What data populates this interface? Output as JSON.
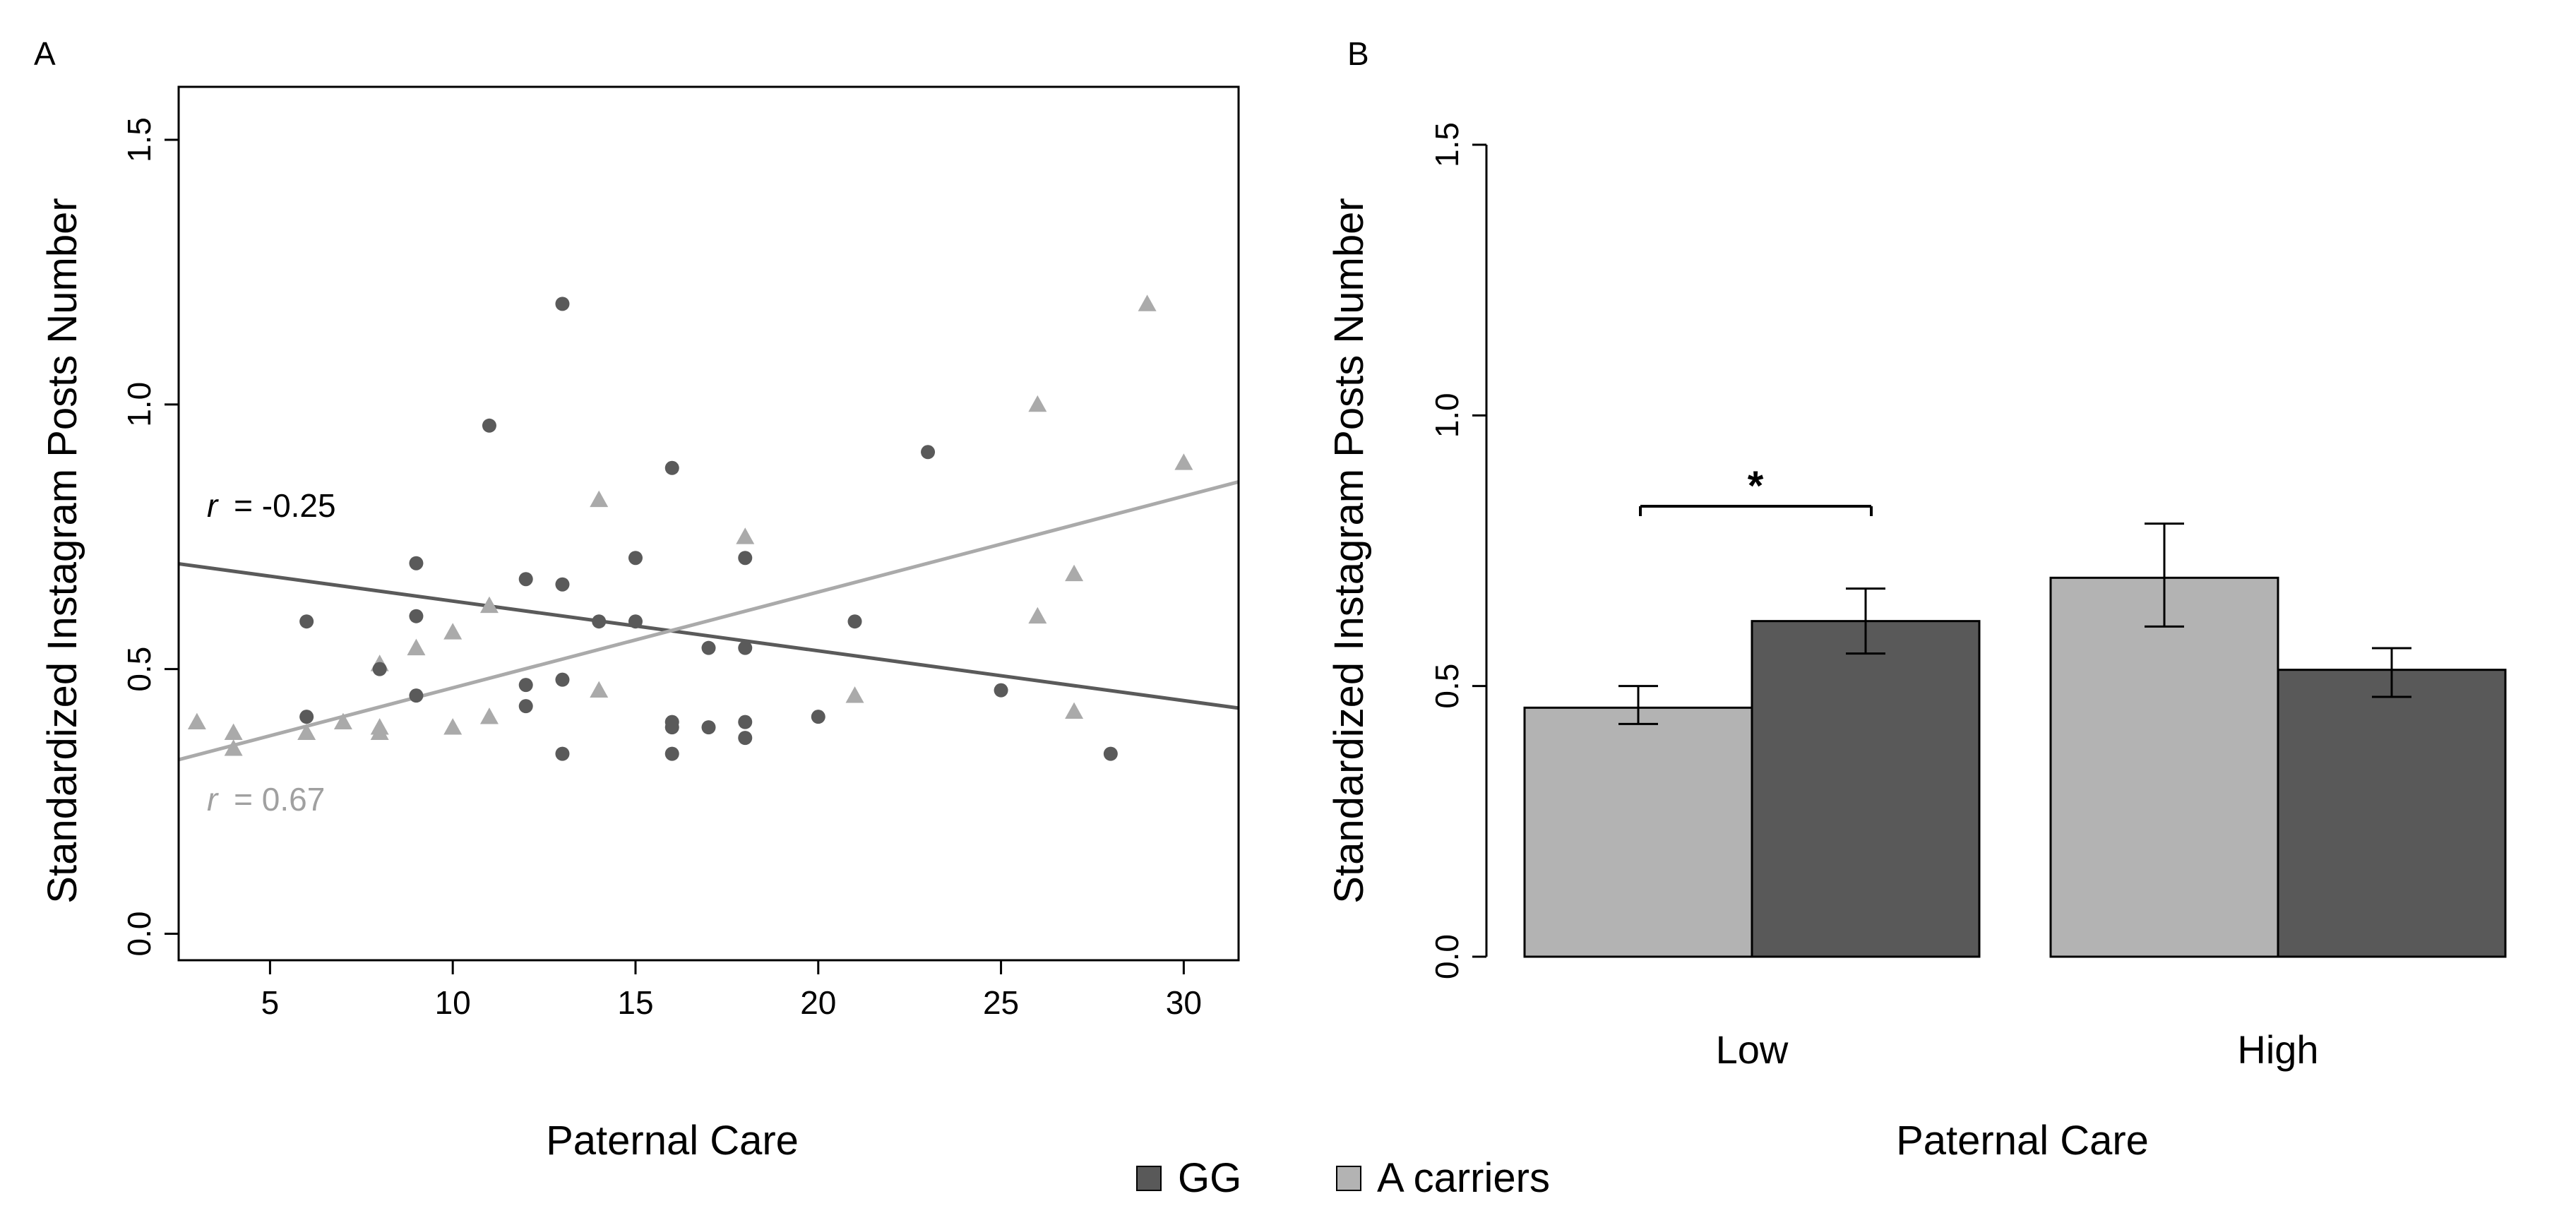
{
  "chart_data": [
    {
      "panel": "A",
      "type": "scatter",
      "xlabel": "Paternal Care",
      "ylabel": "Standardized Instagram Posts Number",
      "xlim": [
        2.5,
        31.5
      ],
      "ylim": [
        -0.05,
        1.6
      ],
      "xticks": [
        5,
        10,
        15,
        20,
        25,
        30
      ],
      "yticks": [
        0.0,
        0.5,
        1.0,
        1.5
      ],
      "xtick_labels": [
        "5",
        "10",
        "15",
        "20",
        "25",
        "30"
      ],
      "ytick_labels": [
        "0.0",
        "0.5",
        "1.0",
        "1.5"
      ],
      "series": [
        {
          "name": "GG",
          "marker": "circle",
          "color": "#5a5a5a",
          "points": [
            [
              6,
              0.59
            ],
            [
              6,
              0.41
            ],
            [
              8,
              0.5
            ],
            [
              9,
              0.7
            ],
            [
              9,
              0.6
            ],
            [
              9,
              0.45
            ],
            [
              11,
              0.96
            ],
            [
              12,
              0.67
            ],
            [
              12,
              0.47
            ],
            [
              12,
              0.43
            ],
            [
              13,
              1.19
            ],
            [
              13,
              0.66
            ],
            [
              13,
              0.48
            ],
            [
              13,
              0.34
            ],
            [
              14,
              0.59
            ],
            [
              15,
              0.71
            ],
            [
              15,
              0.59
            ],
            [
              16,
              0.88
            ],
            [
              16,
              0.39
            ],
            [
              16,
              0.4
            ],
            [
              16,
              0.34
            ],
            [
              17,
              0.54
            ],
            [
              17,
              0.39
            ],
            [
              18,
              0.71
            ],
            [
              18,
              0.54
            ],
            [
              18,
              0.4
            ],
            [
              18,
              0.37
            ],
            [
              20,
              0.41
            ],
            [
              21,
              0.59
            ],
            [
              23,
              0.91
            ],
            [
              25,
              0.46
            ],
            [
              28,
              0.34
            ]
          ],
          "fit": {
            "intercept": 0.7225,
            "slope": -0.0094
          },
          "r_label": "r",
          "r_value": "= -0.25"
        },
        {
          "name": "A carriers",
          "marker": "triangle",
          "color": "#aaaaaa",
          "points": [
            [
              3,
              0.4
            ],
            [
              4,
              0.38
            ],
            [
              4,
              0.35
            ],
            [
              6,
              0.38
            ],
            [
              7,
              0.4
            ],
            [
              8,
              0.51
            ],
            [
              8,
              0.39
            ],
            [
              8,
              0.38
            ],
            [
              9,
              0.54
            ],
            [
              10,
              0.57
            ],
            [
              10,
              0.39
            ],
            [
              11,
              0.62
            ],
            [
              11,
              0.41
            ],
            [
              14,
              0.82
            ],
            [
              14,
              0.46
            ],
            [
              18,
              0.75
            ],
            [
              21,
              0.45
            ],
            [
              26,
              1.0
            ],
            [
              26,
              0.6
            ],
            [
              27,
              0.68
            ],
            [
              27,
              0.42
            ],
            [
              29,
              1.19
            ],
            [
              30,
              0.89
            ]
          ],
          "fit": {
            "intercept": 0.2836,
            "slope": 0.0181
          },
          "r_label": "r",
          "r_value": "=  0.67"
        }
      ]
    },
    {
      "panel": "B",
      "type": "bar",
      "xlabel": "Paternal Care",
      "ylabel": "Standardized Instagram Posts Number",
      "ylim": [
        0,
        1.5
      ],
      "yticks": [
        0.0,
        0.5,
        1.0,
        1.5
      ],
      "ytick_labels": [
        "0.0",
        "0.5",
        "1.0",
        "1.5"
      ],
      "categories": [
        "Low",
        "High"
      ],
      "series": [
        {
          "name": "A carriers",
          "color": "#b3b3b3",
          "values": [
            0.46,
            0.7
          ],
          "err_low": [
            0.43,
            0.61
          ],
          "err_high": [
            0.5,
            0.8
          ]
        },
        {
          "name": "GG",
          "color": "#595959",
          "values": [
            0.62,
            0.53
          ],
          "err_low": [
            0.56,
            0.48
          ],
          "err_high": [
            0.68,
            0.57
          ]
        }
      ],
      "significance": {
        "category": "Low",
        "label": "*"
      }
    }
  ],
  "panel_labels": {
    "a": "A",
    "b": "B"
  },
  "legend": {
    "items": [
      {
        "label": "GG",
        "color": "#595959"
      },
      {
        "label": "A carriers",
        "color": "#b3b3b3"
      }
    ]
  }
}
